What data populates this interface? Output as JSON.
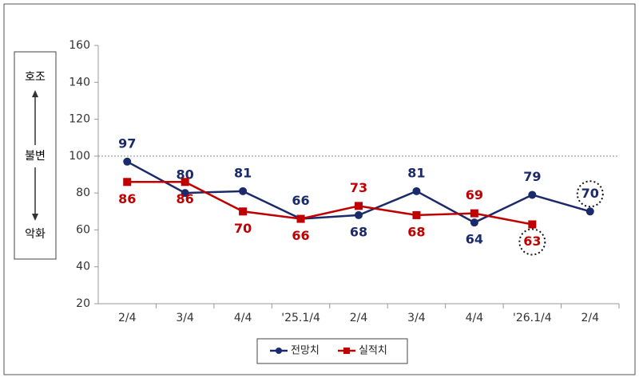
{
  "chart_data": {
    "type": "line",
    "categories": [
      "2/4",
      "3/4",
      "4/4",
      "'25.1/4",
      "2/4",
      "3/4",
      "4/4",
      "'26.1/4",
      "2/4"
    ],
    "series": [
      {
        "name": "전망치",
        "color": "#1b2a6b",
        "marker": "circle",
        "values": [
          97,
          80,
          81,
          66,
          68,
          81,
          64,
          79,
          70
        ]
      },
      {
        "name": "실적치",
        "color": "#c00000",
        "marker": "square",
        "values": [
          86,
          86,
          70,
          66,
          73,
          68,
          69,
          63,
          null
        ]
      }
    ],
    "ylim": [
      20,
      160
    ],
    "yticks": [
      20,
      40,
      60,
      80,
      100,
      120,
      140,
      160
    ],
    "reference_line": 100,
    "scale_labels": [
      "호조",
      "불변",
      "악화"
    ],
    "legend": "bottom"
  }
}
